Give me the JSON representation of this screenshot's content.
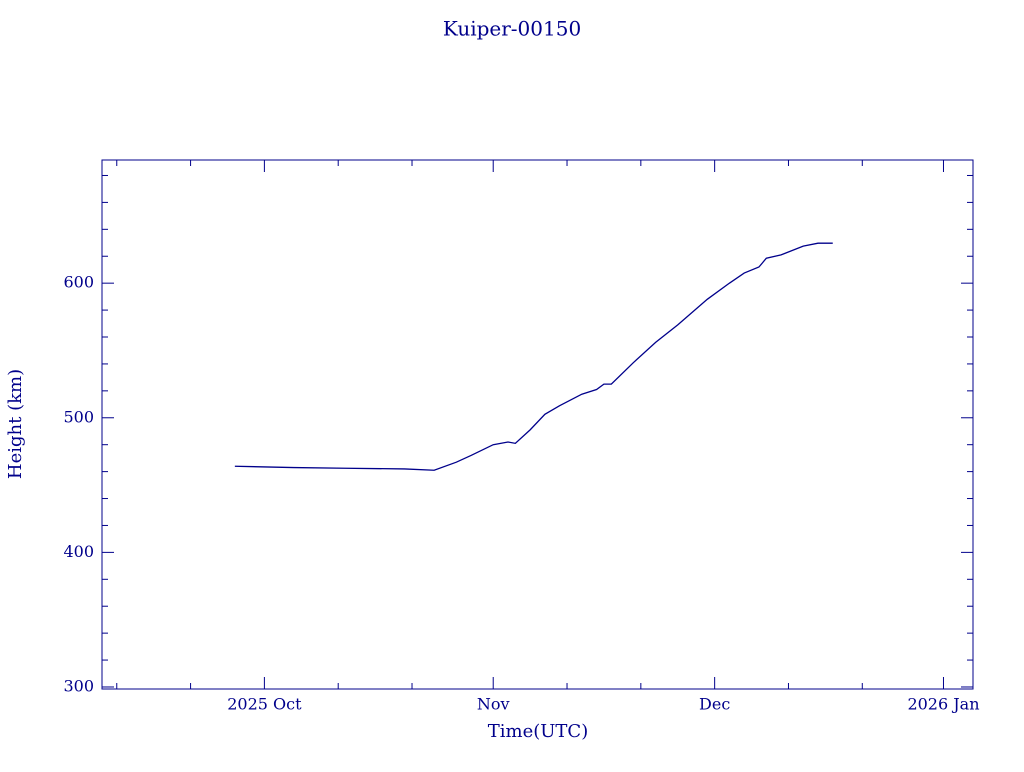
{
  "chart_data": {
    "type": "line",
    "title": "Kuiper-00150",
    "xlabel": "Time(UTC)",
    "ylabel": "Height (km)",
    "color": "#00008b",
    "xlim": [
      "2025-09-09",
      "2026-01-05"
    ],
    "xticks": [
      {
        "value": "2025-10-01",
        "label": "2025 Oct"
      },
      {
        "value": "2025-11-01",
        "label": "Nov"
      },
      {
        "value": "2025-12-01",
        "label": "Dec"
      },
      {
        "value": "2026-01-01",
        "label": "2026 Jan"
      }
    ],
    "xminorticks": [
      "2025-09-11",
      "2025-09-21",
      "2025-10-11",
      "2025-10-21",
      "2025-11-11",
      "2025-11-21",
      "2025-12-11",
      "2025-12-21"
    ],
    "ylim": [
      298.5,
      691.5
    ],
    "yticks": [
      300,
      400,
      500,
      600
    ],
    "yminorticks": [
      320,
      340,
      360,
      380,
      420,
      440,
      460,
      480,
      520,
      540,
      560,
      580,
      620,
      640,
      660,
      680
    ],
    "x": [
      "2025-09-27",
      "2025-10-05",
      "2025-10-12",
      "2025-10-20",
      "2025-10-24",
      "2025-10-27",
      "2025-10-29",
      "2025-11-01",
      "2025-11-03",
      "2025-11-04",
      "2025-11-06",
      "2025-11-08",
      "2025-11-10",
      "2025-11-13",
      "2025-11-15",
      "2025-11-16",
      "2025-11-17",
      "2025-11-20",
      "2025-11-23",
      "2025-11-26",
      "2025-11-30",
      "2025-12-03",
      "2025-12-05",
      "2025-12-07",
      "2025-12-08",
      "2025-12-10",
      "2025-12-13",
      "2025-12-15",
      "2025-12-17"
    ],
    "values": [
      464,
      463,
      462.5,
      462,
      461,
      467,
      472,
      480,
      482,
      481,
      491,
      502.6,
      509,
      517.5,
      521,
      525,
      525,
      541,
      556,
      569,
      588,
      600,
      607.5,
      612,
      618.5,
      621,
      627.5,
      629.7,
      629.7
    ]
  }
}
